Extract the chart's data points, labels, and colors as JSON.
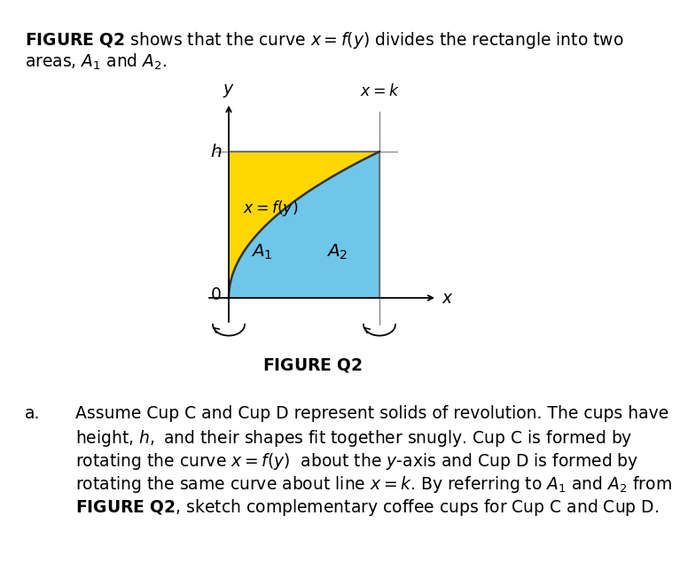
{
  "bg_color": "#ffffff",
  "fig_width": 7.34,
  "fig_height": 6.42,
  "A1_color": "#FFD700",
  "A2_color": "#6EC6E8",
  "curve_power": 0.5,
  "header_line1": "FIGURE Q2 shows that the curve $x = f(y)$ divides the rectangle into two",
  "header_line2": "areas, $A_1$ and $A_2$.",
  "figure_caption": "FIGURE Q2",
  "question_marker": "a.",
  "body_lines": [
    "Assume Cup C and Cup D represent solids of revolution. The cups have",
    "height, $h,$ and their shapes fit together snugly. Cup C is formed by",
    "rotating the curve $x = f(y)$  about the $y$-axis and Cup D is formed by",
    "rotating the same curve about line $x = k$. By referring to $A_1$ and $A_2$ from"
  ],
  "body_last_line": "$\\mathbf{FIGURE\\ Q2}$, sketch complementary coffee cups for Cup C and Cup D."
}
